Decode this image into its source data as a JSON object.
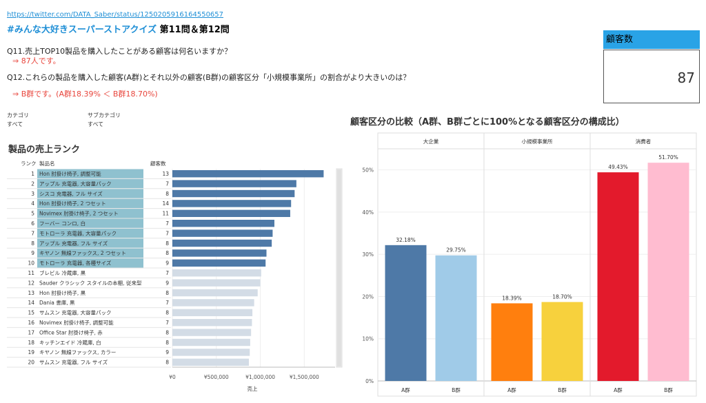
{
  "header": {
    "source_link": "https://twitter.com/DATA_Saber/status/1250205916164550657",
    "title_tag": "#みんな大好きスーパーストアクイズ",
    "title_rest": " 第11問＆第12問"
  },
  "questions": {
    "q11": "Q11.売上TOP10製品を購入したことがある顧客は何名いますか？",
    "a11": "⇒ 87人です。",
    "q12": "Q12.これらの製品を購入した顧客(A群)とそれ以外の顧客(B群)の顧客区分「小規模事業所」の割合がより大きいのは？",
    "a12": "⇒ B群です。(A群18.39% ＜ B群18.70%)"
  },
  "kpi": {
    "label": "顧客数",
    "value": "87"
  },
  "filters": [
    {
      "label": "カテゴリ",
      "value": "すべて"
    },
    {
      "label": "サブカテゴリ",
      "value": "すべて"
    }
  ],
  "colors": {
    "highlight": "#4e79a7",
    "muted": "#d3dce6",
    "cell_highlight": "#8fc1cf",
    "accent": "#29a3e6",
    "answer": "#e8453c"
  },
  "chart_data": [
    {
      "type": "bar",
      "orientation": "horizontal",
      "title": "製品の売上ランク",
      "columns": [
        "ランク",
        "製品名",
        "顧客数"
      ],
      "xlabel": "売上",
      "xlim": [
        0,
        1850000
      ],
      "xticks": [
        0,
        500000,
        1000000,
        1500000
      ],
      "xtick_labels": [
        "¥0",
        "¥500,000",
        "¥1,000,000",
        "¥1,500,000"
      ],
      "rows": [
        {
          "rank": 1,
          "name": "Hon 肘掛け椅子, 調整可能",
          "customers": 13,
          "sales": 1720000,
          "top10": true
        },
        {
          "rank": 2,
          "name": "アップル 充電器, 大容量パック",
          "customers": 7,
          "sales": 1410000,
          "top10": true
        },
        {
          "rank": 3,
          "name": "シスコ 充電器, フル サイズ",
          "customers": 8,
          "sales": 1390000,
          "top10": true
        },
        {
          "rank": 4,
          "name": "Hon 肘掛け椅子, 2 つセット",
          "customers": 14,
          "sales": 1350000,
          "top10": true
        },
        {
          "rank": 5,
          "name": "Novimex 肘掛け椅子, 2 つセット",
          "customers": 11,
          "sales": 1340000,
          "top10": true
        },
        {
          "rank": 6,
          "name": "フーバー コンロ, 白",
          "customers": 7,
          "sales": 1160000,
          "top10": true
        },
        {
          "rank": 7,
          "name": "モトローラ 充電器, 大容量パック",
          "customers": 7,
          "sales": 1140000,
          "top10": true
        },
        {
          "rank": 8,
          "name": "アップル 充電器, フル サイズ",
          "customers": 8,
          "sales": 1130000,
          "top10": true
        },
        {
          "rank": 9,
          "name": "キヤノン 無線ファックス, 2 つセット",
          "customers": 8,
          "sales": 1070000,
          "top10": true
        },
        {
          "rank": 10,
          "name": "モトローラ 充電器, 各種サイズ",
          "customers": 9,
          "sales": 1060000,
          "top10": true
        },
        {
          "rank": 11,
          "name": "ブレビル 冷蔵庫, 黒",
          "customers": 7,
          "sales": 1010000,
          "top10": false
        },
        {
          "rank": 12,
          "name": "Sauder クラシック スタイルの本棚, 従来型",
          "customers": 9,
          "sales": 1000000,
          "top10": false
        },
        {
          "rank": 13,
          "name": "Hon 肘掛け椅子, 黒",
          "customers": 8,
          "sales": 970000,
          "top10": false
        },
        {
          "rank": 14,
          "name": "Dania 書庫, 黒",
          "customers": 7,
          "sales": 930000,
          "top10": false
        },
        {
          "rank": 15,
          "name": "サムスン 充電器, 大容量パック",
          "customers": 8,
          "sales": 910000,
          "top10": false
        },
        {
          "rank": 16,
          "name": "Novimex 肘掛け椅子, 調整可能",
          "customers": 7,
          "sales": 905000,
          "top10": false
        },
        {
          "rank": 17,
          "name": "Office Star 肘掛け椅子, 赤",
          "customers": 8,
          "sales": 895000,
          "top10": false
        },
        {
          "rank": 18,
          "name": "キッチンエイド 冷蔵庫, 白",
          "customers": 8,
          "sales": 885000,
          "top10": false
        },
        {
          "rank": 19,
          "name": "キヤノン 無線ファックス, カラー",
          "customers": 9,
          "sales": 880000,
          "top10": false
        },
        {
          "rank": 20,
          "name": "サムスン 充電器, フル サイズ",
          "customers": 8,
          "sales": 870000,
          "top10": false
        }
      ]
    },
    {
      "type": "bar",
      "title": "顧客区分の比較（A群、B群ごとに100%となる顧客区分の構成比）",
      "ylim": [
        0,
        55
      ],
      "yticks": [
        0,
        10,
        20,
        30,
        40,
        50
      ],
      "ytick_labels": [
        "0%",
        "10%",
        "20%",
        "30%",
        "40%",
        "50%"
      ],
      "panels": [
        {
          "name": "大企業",
          "categories": [
            "A群",
            "B群"
          ],
          "values": [
            32.18
          ],
          "labels": [
            "32.18%",
            "29.75%"
          ],
          "b_value": 29.75,
          "colors": [
            "#4e79a7",
            "#a0cbe8"
          ]
        },
        {
          "name": "小規模事業所",
          "categories": [
            "A群",
            "B群"
          ],
          "values": [
            18.39
          ],
          "labels": [
            "18.39%",
            "18.70%"
          ],
          "b_value": 18.7,
          "colors": [
            "#ff7f0e",
            "#f7d13d"
          ]
        },
        {
          "name": "消費者",
          "categories": [
            "A群",
            "B群"
          ],
          "values": [
            49.43
          ],
          "labels": [
            "49.43%",
            "51.70%"
          ],
          "b_value": 51.7,
          "colors": [
            "#e31a2c",
            "#ffbcd0"
          ]
        }
      ]
    }
  ]
}
